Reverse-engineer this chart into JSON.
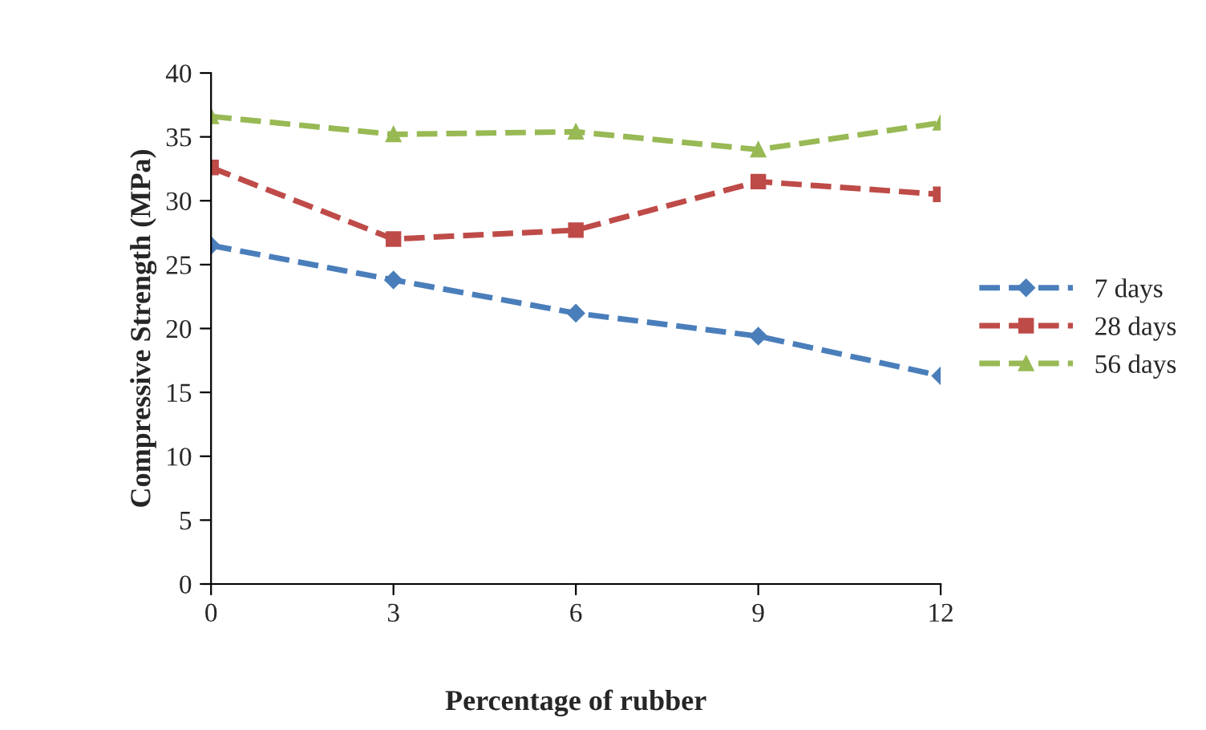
{
  "chart_data": {
    "type": "line",
    "xlabel": "Percentage of rubber",
    "ylabel": "Compressive Strength (MPa)",
    "categories": [
      "0",
      "3",
      "6",
      "9",
      "12"
    ],
    "series": [
      {
        "name": "7 days",
        "color": "#4a7ebb",
        "marker": "diamond",
        "values": [
          26.5,
          23.8,
          21.2,
          19.4,
          16.3
        ]
      },
      {
        "name": "28 days",
        "color": "#be4b48",
        "marker": "square",
        "values": [
          32.6,
          27.0,
          27.7,
          31.5,
          30.5
        ]
      },
      {
        "name": "56 days",
        "color": "#98b954",
        "marker": "triangle",
        "values": [
          36.6,
          35.2,
          35.4,
          34.0,
          36.1
        ]
      }
    ],
    "ylim": [
      0,
      40
    ],
    "yticks": [
      0,
      5,
      10,
      15,
      20,
      25,
      30,
      35,
      40
    ],
    "grid": false,
    "legend": "right",
    "line_style": "dashed"
  }
}
